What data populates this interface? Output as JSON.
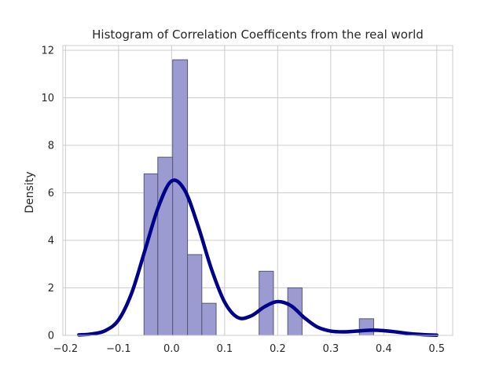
{
  "chart_data": {
    "type": "bar",
    "title": "Histogram of Correlation Coefficents from the real world",
    "xlabel": "",
    "ylabel": "Density",
    "xlim": [
      -0.205,
      0.53
    ],
    "ylim": [
      0,
      12.2
    ],
    "grid": true,
    "x_ticks": [
      -0.2,
      -0.1,
      0.0,
      0.1,
      0.2,
      0.3,
      0.4,
      0.5
    ],
    "x_tick_labels": [
      "−0.2",
      "−0.1",
      "0.0",
      "0.1",
      "0.2",
      "0.3",
      "0.4",
      "0.5"
    ],
    "y_ticks": [
      0,
      2,
      4,
      6,
      8,
      10,
      12
    ],
    "y_tick_labels": [
      "0",
      "2",
      "4",
      "6",
      "8",
      "10",
      "12"
    ],
    "histogram": {
      "bin_edges": [
        -0.052,
        -0.026,
        0.002,
        0.03,
        0.057,
        0.084,
        0.111,
        0.138,
        0.165,
        0.192,
        0.219,
        0.246,
        0.273,
        0.3,
        0.327,
        0.354,
        0.381
      ],
      "densities": [
        6.8,
        7.5,
        11.6,
        3.4,
        1.35,
        0,
        0,
        0,
        2.7,
        0,
        2.0,
        0,
        0,
        0,
        0,
        0.7
      ],
      "color": "#9b9bd1",
      "edge_color": "#555577"
    },
    "kde": {
      "color": "#00008b",
      "x": [
        -0.175,
        -0.15,
        -0.125,
        -0.1,
        -0.075,
        -0.05,
        -0.025,
        0.0,
        0.025,
        0.05,
        0.075,
        0.1,
        0.125,
        0.15,
        0.175,
        0.2,
        0.225,
        0.25,
        0.275,
        0.3,
        0.325,
        0.35,
        0.375,
        0.4,
        0.425,
        0.45,
        0.475,
        0.5
      ],
      "y": [
        0.02,
        0.06,
        0.2,
        0.65,
        1.8,
        3.6,
        5.4,
        6.5,
        6.1,
        4.6,
        2.8,
        1.4,
        0.75,
        0.82,
        1.2,
        1.42,
        1.25,
        0.75,
        0.35,
        0.18,
        0.15,
        0.18,
        0.22,
        0.2,
        0.14,
        0.07,
        0.03,
        0.01
      ]
    }
  }
}
